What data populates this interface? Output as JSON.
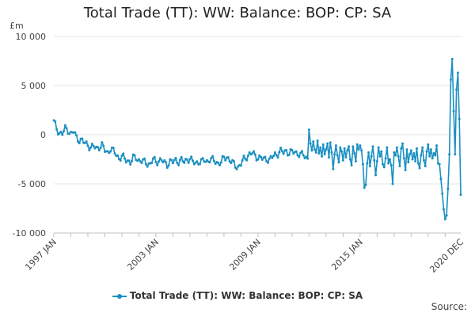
{
  "chart_data": {
    "type": "line",
    "title": "Total Trade (TT): WW: Balance: BOP: CP: SA",
    "ylabel": "£m",
    "xlabel": "",
    "ylim": [
      -10000,
      10000
    ],
    "y_ticks": [
      10000,
      5000,
      0,
      -5000,
      -10000
    ],
    "y_tick_labels": [
      "10 000",
      "5 000",
      "0",
      "-5 000",
      "-10 000"
    ],
    "x_ticks": [
      0,
      72,
      144,
      216,
      287
    ],
    "x_tick_labels": [
      "1997 JAN",
      "2003 JAN",
      "2009 JAN",
      "2015 JAN",
      "2020 DEC"
    ],
    "grid": true,
    "legend": "bottom-center",
    "series": [
      {
        "name": "Total Trade (TT): WW: Balance: BOP: CP: SA",
        "color": "#1a8fc2",
        "anchors": [
          [
            0,
            1300
          ],
          [
            2,
            600
          ],
          [
            4,
            200
          ],
          [
            6,
            100
          ],
          [
            8,
            600
          ],
          [
            10,
            500
          ],
          [
            12,
            100
          ],
          [
            14,
            300
          ],
          [
            16,
            -300
          ],
          [
            18,
            -500
          ],
          [
            20,
            -600
          ],
          [
            22,
            -900
          ],
          [
            24,
            -1000
          ],
          [
            26,
            -1300
          ],
          [
            28,
            -1200
          ],
          [
            30,
            -1400
          ],
          [
            32,
            -1200
          ],
          [
            34,
            -1100
          ],
          [
            36,
            -1600
          ],
          [
            38,
            -1800
          ],
          [
            40,
            -1400
          ],
          [
            42,
            -1700
          ],
          [
            44,
            -2000
          ],
          [
            46,
            -2400
          ],
          [
            48,
            -2200
          ],
          [
            50,
            -2500
          ],
          [
            52,
            -2600
          ],
          [
            54,
            -2800
          ],
          [
            56,
            -2400
          ],
          [
            58,
            -2300
          ],
          [
            60,
            -2600
          ],
          [
            62,
            -2700
          ],
          [
            64,
            -2800
          ],
          [
            66,
            -2900
          ],
          [
            68,
            -3000
          ],
          [
            70,
            -2500
          ],
          [
            72,
            -2800
          ],
          [
            74,
            -2600
          ],
          [
            76,
            -2600
          ],
          [
            78,
            -2900
          ],
          [
            80,
            -3000
          ],
          [
            82,
            -2700
          ],
          [
            84,
            -2800
          ],
          [
            86,
            -2600
          ],
          [
            88,
            -2700
          ],
          [
            90,
            -2600
          ],
          [
            92,
            -2800
          ],
          [
            94,
            -2500
          ],
          [
            96,
            -2400
          ],
          [
            98,
            -2800
          ],
          [
            100,
            -2900
          ],
          [
            102,
            -2700
          ],
          [
            104,
            -2800
          ],
          [
            106,
            -2600
          ],
          [
            108,
            -2700
          ],
          [
            110,
            -2500
          ],
          [
            112,
            -2600
          ],
          [
            114,
            -2700
          ],
          [
            116,
            -2900
          ],
          [
            118,
            -2800
          ],
          [
            120,
            -2400
          ],
          [
            122,
            -2200
          ],
          [
            124,
            -2600
          ],
          [
            126,
            -2900
          ],
          [
            128,
            -3100
          ],
          [
            130,
            -3300
          ],
          [
            132,
            -3000
          ],
          [
            134,
            -2500
          ],
          [
            136,
            -2200
          ],
          [
            138,
            -2000
          ],
          [
            140,
            -1900
          ],
          [
            142,
            -2100
          ],
          [
            144,
            -2300
          ],
          [
            146,
            -2400
          ],
          [
            148,
            -2500
          ],
          [
            150,
            -2400
          ],
          [
            152,
            -2600
          ],
          [
            154,
            -2300
          ],
          [
            156,
            -2000
          ],
          [
            158,
            -1900
          ],
          [
            160,
            -1700
          ],
          [
            162,
            -1800
          ],
          [
            164,
            -1600
          ],
          [
            166,
            -1900
          ],
          [
            168,
            -1800
          ],
          [
            170,
            -1700
          ],
          [
            172,
            -1900
          ],
          [
            174,
            -2100
          ],
          [
            176,
            -2000
          ],
          [
            178,
            -2300
          ],
          [
            180,
            -2500
          ],
          [
            182,
            -2600
          ],
          [
            184,
            -2400
          ],
          [
            186,
            -2300
          ],
          [
            188,
            -2800
          ],
          [
            190,
            -2400
          ],
          [
            192,
            -2600
          ],
          [
            194,
            -2700
          ],
          [
            196,
            -2500
          ],
          [
            198,
            -2300
          ],
          [
            200,
            -2600
          ],
          [
            202,
            -2800
          ],
          [
            204,
            -2900
          ],
          [
            206,
            -2500
          ],
          [
            208,
            -2200
          ],
          [
            210,
            -2600
          ],
          [
            212,
            -2900
          ],
          [
            214,
            -2700
          ],
          [
            216,
            -2300
          ],
          [
            218,
            -2600
          ],
          [
            220,
            -2400
          ],
          [
            222,
            -2100
          ],
          [
            224,
            -2000
          ],
          [
            226,
            -2300
          ],
          [
            228,
            -2500
          ],
          [
            230,
            -2100
          ],
          [
            232,
            -2000
          ],
          [
            234,
            -2200
          ],
          [
            236,
            -2400
          ],
          [
            238,
            -2100
          ],
          [
            240,
            -2300
          ],
          [
            242,
            -2500
          ],
          [
            244,
            -2400
          ],
          [
            246,
            -2200
          ],
          [
            248,
            -2300
          ],
          [
            250,
            -2500
          ],
          [
            252,
            -2400
          ],
          [
            254,
            -2600
          ],
          [
            256,
            -2300
          ],
          [
            258,
            -2200
          ],
          [
            260,
            -2400
          ],
          [
            262,
            -2500
          ],
          [
            264,
            -2700
          ],
          [
            266,
            -2600
          ],
          [
            268,
            -2800
          ],
          [
            270,
            -2500
          ],
          [
            272,
            -3000
          ],
          [
            273,
            -4500
          ],
          [
            274,
            -6000
          ],
          [
            275,
            -7600
          ],
          [
            276,
            -8600
          ],
          [
            277,
            -8200
          ],
          [
            278,
            -5500
          ],
          [
            279,
            -2000
          ],
          [
            280,
            5600
          ],
          [
            281,
            7700
          ],
          [
            282,
            2400
          ],
          [
            283,
            -2000
          ],
          [
            284,
            4600
          ],
          [
            285,
            6300
          ],
          [
            286,
            1600
          ],
          [
            287,
            -6100
          ]
        ],
        "overlay": [
          [
            180,
            500
          ],
          [
            181,
            -900
          ],
          [
            182,
            -1600
          ],
          [
            183,
            -700
          ],
          [
            184,
            -1500
          ],
          [
            185,
            -1800
          ],
          [
            186,
            -600
          ],
          [
            187,
            -1900
          ],
          [
            188,
            -1300
          ],
          [
            189,
            -2200
          ],
          [
            190,
            -1000
          ],
          [
            191,
            -2000
          ],
          [
            192,
            -1500
          ],
          [
            193,
            -900
          ],
          [
            194,
            -2300
          ],
          [
            195,
            -800
          ],
          [
            196,
            -1800
          ],
          [
            197,
            -3500
          ],
          [
            198,
            -2000
          ],
          [
            199,
            -1100
          ],
          [
            200,
            -2100
          ],
          [
            201,
            -2800
          ],
          [
            202,
            -1300
          ],
          [
            203,
            -1700
          ],
          [
            204,
            -2600
          ],
          [
            205,
            -1400
          ],
          [
            206,
            -2300
          ],
          [
            207,
            -1600
          ],
          [
            208,
            -1200
          ],
          [
            209,
            -2500
          ],
          [
            210,
            -3100
          ],
          [
            211,
            -1200
          ],
          [
            212,
            -1900
          ],
          [
            213,
            -2700
          ],
          [
            214,
            -1000
          ],
          [
            215,
            -1500
          ],
          [
            216,
            -1100
          ],
          [
            217,
            -1600
          ],
          [
            218,
            -3000
          ],
          [
            219,
            -5400
          ],
          [
            220,
            -5100
          ],
          [
            221,
            -2900
          ],
          [
            222,
            -1800
          ],
          [
            223,
            -3200
          ],
          [
            224,
            -2200
          ],
          [
            225,
            -1200
          ],
          [
            226,
            -2600
          ],
          [
            227,
            -4100
          ],
          [
            228,
            -2700
          ],
          [
            229,
            -1300
          ],
          [
            230,
            -2200
          ],
          [
            231,
            -1700
          ],
          [
            232,
            -3000
          ],
          [
            233,
            -3300
          ],
          [
            234,
            -2400
          ],
          [
            235,
            -1300
          ],
          [
            236,
            -2900
          ],
          [
            237,
            -2500
          ],
          [
            238,
            -3100
          ],
          [
            239,
            -5000
          ],
          [
            240,
            -1800
          ],
          [
            241,
            -2100
          ],
          [
            242,
            -1300
          ],
          [
            243,
            -2200
          ],
          [
            244,
            -3200
          ],
          [
            245,
            -1400
          ],
          [
            246,
            -900
          ],
          [
            247,
            -2400
          ],
          [
            248,
            -3600
          ],
          [
            249,
            -1500
          ],
          [
            250,
            -2800
          ],
          [
            251,
            -2000
          ],
          [
            252,
            -1600
          ],
          [
            253,
            -2500
          ],
          [
            254,
            -1900
          ],
          [
            255,
            -2700
          ],
          [
            256,
            -1400
          ],
          [
            257,
            -2900
          ],
          [
            258,
            -3400
          ],
          [
            259,
            -2100
          ],
          [
            260,
            -1300
          ],
          [
            261,
            -2600
          ],
          [
            262,
            -3200
          ],
          [
            263,
            -1700
          ],
          [
            264,
            -1000
          ],
          [
            265,
            -2200
          ],
          [
            266,
            -1500
          ],
          [
            267,
            -2400
          ],
          [
            268,
            -1900
          ],
          [
            269,
            -2100
          ],
          [
            270,
            -1100
          ],
          [
            271,
            -2900
          ],
          [
            272,
            -3000
          ]
        ]
      }
    ]
  },
  "legend_label": "Total Trade (TT): WW: Balance: BOP: CP: SA",
  "source_label": "Source:"
}
